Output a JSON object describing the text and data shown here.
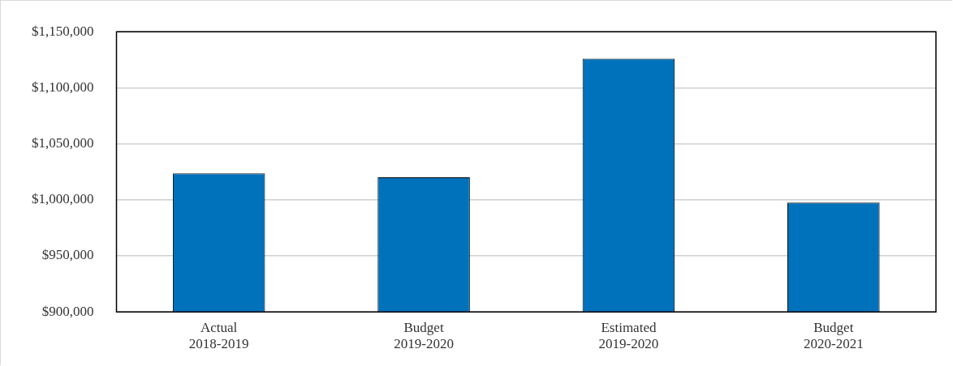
{
  "chart_data": {
    "type": "bar",
    "categories": [
      "Actual\n2018-2019",
      "Budget\n2019-2020",
      "Estimated\n2019-2020",
      "Budget\n2020-2021"
    ],
    "values": [
      1023600,
      1020000,
      1126000,
      997500
    ],
    "color": "#0072bc",
    "ylim": [
      900000,
      1150000
    ],
    "yticks": [
      {
        "value": 900000,
        "label": "$900,000"
      },
      {
        "value": 950000,
        "label": "$950,000"
      },
      {
        "value": 1000000,
        "label": "$1,000,000"
      },
      {
        "value": 1050000,
        "label": "$1,050,000"
      },
      {
        "value": 1100000,
        "label": "$1,100,000"
      },
      {
        "value": 1150000,
        "label": "$1,150,000"
      }
    ],
    "grid": "y",
    "legend": false
  }
}
